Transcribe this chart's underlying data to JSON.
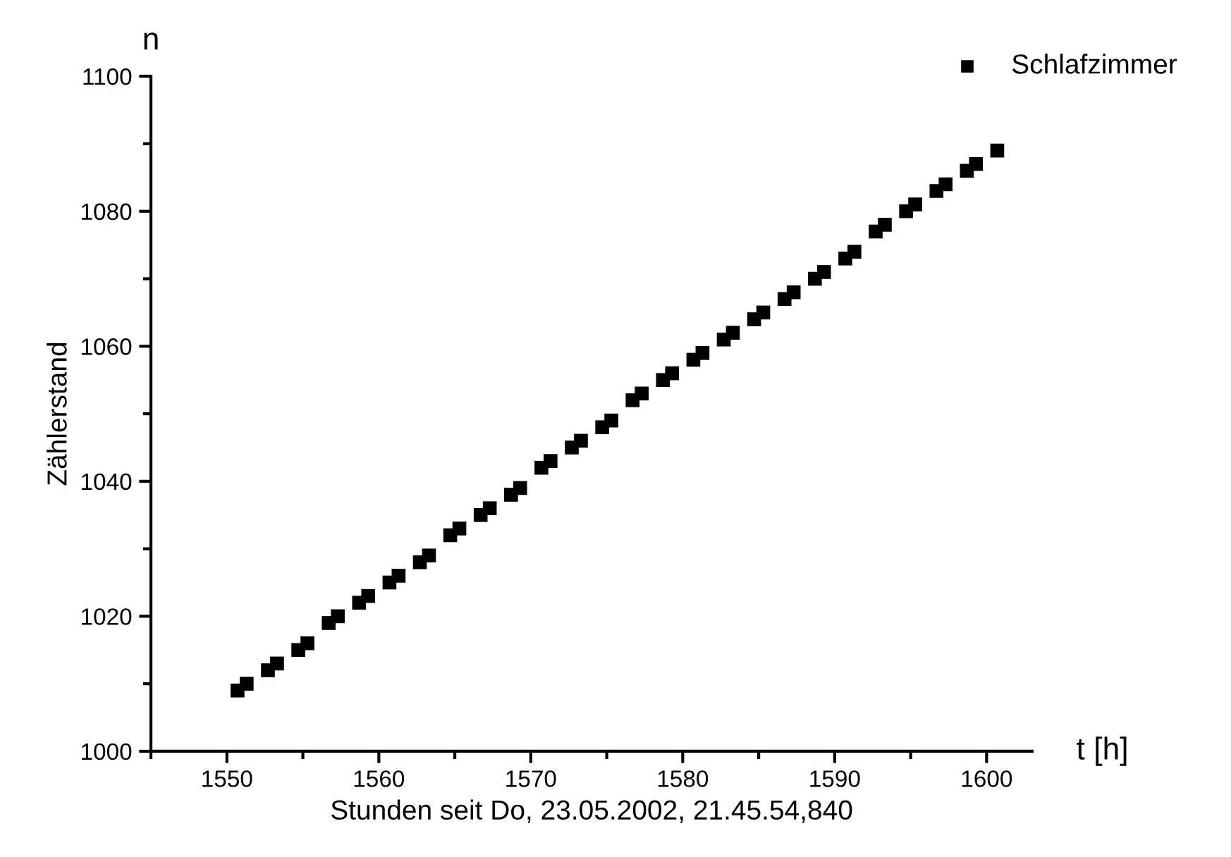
{
  "chart_data": {
    "type": "scatter",
    "xlabel": "Stunden seit Do, 23.05.2002, 21.45.54,840",
    "ylabel": "Zählerstand",
    "annotations": [
      "n",
      "t [h]"
    ],
    "series": [
      {
        "name": "Schlafzimmer",
        "color": "#000000",
        "x": [
          1550.7,
          1551.3,
          1552.7,
          1553.3,
          1554.7,
          1555.3,
          1556.7,
          1557.3,
          1558.7,
          1559.3,
          1560.7,
          1561.3,
          1562.7,
          1563.3,
          1564.7,
          1565.3,
          1566.7,
          1567.3,
          1568.7,
          1569.3,
          1570.7,
          1571.3,
          1572.7,
          1573.3,
          1574.7,
          1575.3,
          1576.7,
          1577.3,
          1578.7,
          1579.3,
          1580.7,
          1581.3,
          1582.7,
          1583.3,
          1584.7,
          1585.3,
          1586.7,
          1587.3,
          1588.7,
          1589.3,
          1590.7,
          1591.3,
          1592.7,
          1593.3,
          1594.7,
          1595.3,
          1596.7,
          1597.3,
          1598.7,
          1599.3,
          1600.7
        ],
        "values": [
          1009,
          1010,
          1012,
          1013,
          1015,
          1016,
          1019,
          1020,
          1022,
          1023,
          1025,
          1026,
          1028,
          1029,
          1032,
          1033,
          1035,
          1036,
          1038,
          1039,
          1042,
          1043,
          1045,
          1046,
          1048,
          1049,
          1052,
          1053,
          1055,
          1056,
          1058,
          1059,
          1061,
          1062,
          1064,
          1065,
          1067,
          1068,
          1070,
          1071,
          1073,
          1074,
          1077,
          1078,
          1080,
          1081,
          1083,
          1084,
          1086,
          1087,
          1089
        ]
      }
    ],
    "xlim": [
      1545,
      1603
    ],
    "ylim": [
      1000,
      1100
    ],
    "xticks": [
      {
        "value": 1545,
        "label": null
      },
      1550,
      {
        "value": 1555,
        "label": null
      },
      1560,
      {
        "value": 1565,
        "label": null
      },
      1570,
      {
        "value": 1575,
        "label": null
      },
      1580,
      {
        "value": 1585,
        "label": null
      },
      1590,
      {
        "value": 1595,
        "label": null
      },
      1600
    ],
    "yticks": [
      1000,
      {
        "value": 1010,
        "label": null
      },
      1020,
      {
        "value": 1030,
        "label": null
      },
      1040,
      {
        "value": 1050,
        "label": null
      },
      1060,
      {
        "value": 1070,
        "label": null
      },
      1080,
      {
        "value": 1090,
        "label": null
      },
      1100
    ],
    "marker": "square",
    "grid": false,
    "legend": "top right"
  }
}
